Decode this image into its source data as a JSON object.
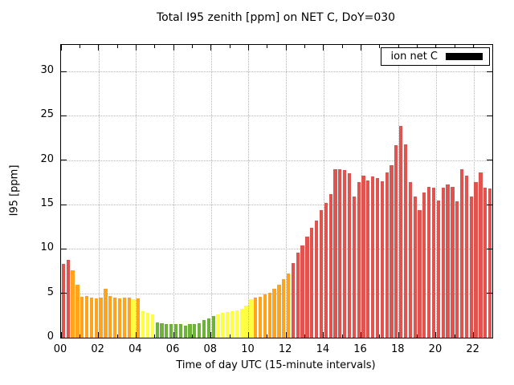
{
  "chart_data": {
    "type": "bar",
    "title": "Total I95 zenith [ppm] on NET C, DoY=030",
    "xlabel": "Time of day UTC (15-minute intervals)",
    "ylabel": "I95 [ppm]",
    "legend": {
      "label": "ion net C",
      "swatch_color": "#000000",
      "position": "top-right"
    },
    "grid": true,
    "xlim": [
      0,
      23
    ],
    "ylim": [
      0,
      33
    ],
    "yticks": [
      0,
      5,
      10,
      15,
      20,
      25,
      30
    ],
    "xticks": [
      0,
      2,
      4,
      6,
      8,
      10,
      12,
      14,
      16,
      18,
      20,
      22
    ],
    "xtick_labels": [
      "00",
      "02",
      "04",
      "06",
      "08",
      "10",
      "12",
      "14",
      "16",
      "18",
      "20",
      "22"
    ],
    "start_hour": 0,
    "interval_hours": 0.25,
    "values": [
      8.3,
      8.8,
      7.6,
      6.0,
      4.6,
      4.7,
      4.5,
      4.4,
      4.5,
      5.5,
      4.7,
      4.5,
      4.4,
      4.5,
      4.5,
      4.3,
      4.4,
      3.0,
      2.8,
      2.6,
      1.7,
      1.6,
      1.5,
      1.5,
      1.5,
      1.5,
      1.4,
      1.5,
      1.5,
      1.6,
      2.0,
      2.2,
      2.4,
      2.6,
      2.8,
      2.9,
      3.0,
      3.1,
      3.3,
      3.6,
      4.3,
      4.5,
      4.6,
      4.9,
      5.1,
      5.5,
      6.0,
      6.6,
      7.2,
      8.4,
      9.6,
      10.4,
      11.4,
      12.4,
      13.2,
      14.4,
      15.2,
      16.2,
      19.0,
      19.0,
      18.9,
      18.5,
      15.9,
      17.5,
      18.3,
      17.7,
      18.2,
      18.0,
      17.6,
      18.6,
      19.4,
      21.7,
      23.9,
      21.8,
      17.5,
      15.9,
      14.4,
      16.4,
      17.0,
      16.9,
      15.5,
      16.9,
      17.3,
      17.0,
      15.4,
      19.0,
      18.3,
      15.9,
      17.5,
      18.6,
      16.9,
      16.8
    ],
    "color_scale": [
      {
        "max": 2.4,
        "color": "#6fb23b",
        "meaning": "low"
      },
      {
        "max": 4.35,
        "color": "#ffff42",
        "meaning": "moderate"
      },
      {
        "max": 8.0,
        "color": "#ffa41c",
        "meaning": "elevated"
      },
      {
        "max": 99,
        "color": "#e0534e",
        "meaning": "high"
      }
    ]
  }
}
